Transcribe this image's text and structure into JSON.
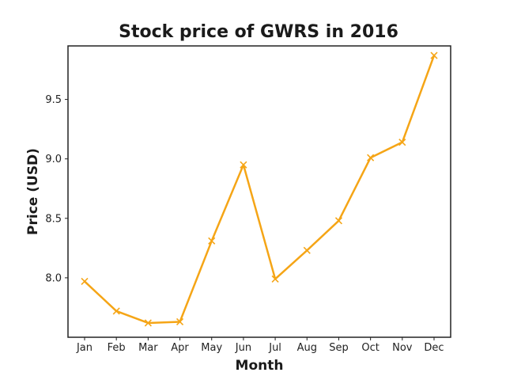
{
  "chart_data": {
    "type": "line",
    "title": "Stock price of GWRS in 2016",
    "xlabel": "Month",
    "ylabel": "Price (USD)",
    "categories": [
      "Jan",
      "Feb",
      "Mar",
      "Apr",
      "May",
      "Jun",
      "Jul",
      "Aug",
      "Sep",
      "Oct",
      "Nov",
      "Dec"
    ],
    "series": [
      {
        "values": [
          7.97,
          7.72,
          7.62,
          7.63,
          8.31,
          8.95,
          7.99,
          8.23,
          8.48,
          9.01,
          9.14,
          9.87
        ],
        "color": "#f5a516",
        "marker": "x"
      }
    ],
    "yticks": [
      8.0,
      8.5,
      9.0,
      9.5
    ],
    "ytick_labels": [
      "8.0",
      "8.5",
      "9.0",
      "9.5"
    ],
    "ylim": [
      7.5,
      9.95
    ],
    "grid": false,
    "legend": false
  }
}
